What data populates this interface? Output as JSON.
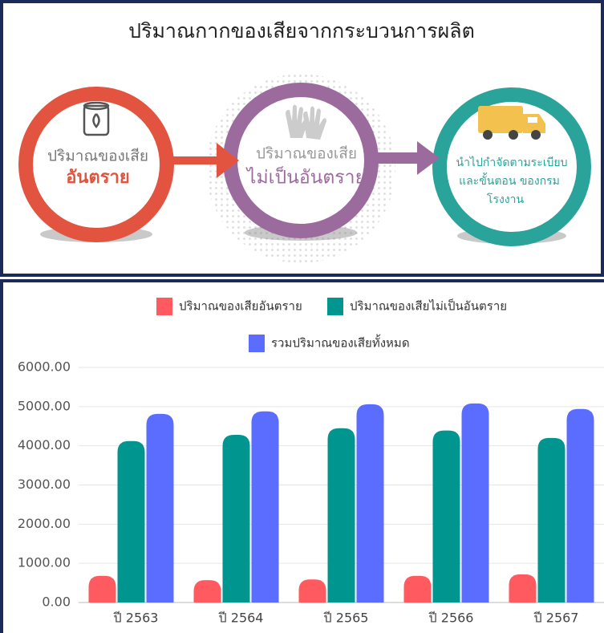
{
  "diagram": {
    "title": "ปริมาณกากของเสียจากกระบวนการผลิต",
    "nodes": [
      {
        "lines": [
          "ปริมาณของเสีย",
          "อันตราย"
        ]
      },
      {
        "lines": [
          "ปริมาณของเสีย",
          "ไม่เป็นอันตราย"
        ]
      },
      {
        "lines": [
          "นำไปกำจัดตามระเบียบ",
          "และขั้นตอน ของกรม",
          "โรงงาน"
        ]
      }
    ]
  },
  "chart_data": {
    "type": "bar",
    "categories": [
      "ปี 2563",
      "ปี 2564",
      "ปี 2565",
      "ปี 2566",
      "ปี 2567"
    ],
    "series": [
      {
        "name": "ปริมาณของเสียอันตราย",
        "color": "#ff5a5f",
        "values": [
          680,
          570,
          590,
          680,
          720
        ]
      },
      {
        "name": "ปริมาณของเสียไม่เป็นอันตราย",
        "color": "#00968f",
        "values": [
          4120,
          4280,
          4450,
          4390,
          4200
        ]
      },
      {
        "name": "รวมปริมาณของเสียทั้งหมด",
        "color": "#5b6dff",
        "values": [
          4815,
          4880,
          5060,
          5080,
          4940
        ]
      }
    ],
    "ylim": [
      0,
      6000
    ],
    "yticks": [
      {
        "value": 0,
        "label": "0.00"
      },
      {
        "value": 1000,
        "label": "1000.00"
      },
      {
        "value": 2000,
        "label": "2000.00"
      },
      {
        "value": 3000,
        "label": "3000.00"
      },
      {
        "value": 4000,
        "label": "4000.00"
      },
      {
        "value": 5000,
        "label": "5000.00"
      },
      {
        "value": 6000,
        "label": "6000.00"
      }
    ],
    "grid": true
  }
}
